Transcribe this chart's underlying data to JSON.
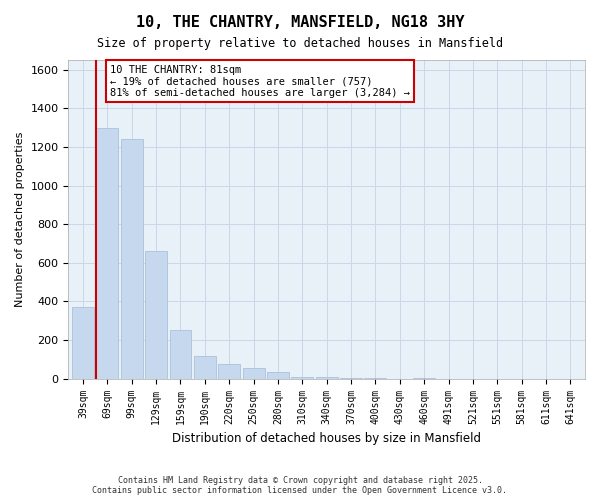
{
  "title": "10, THE CHANTRY, MANSFIELD, NG18 3HY",
  "subtitle": "Size of property relative to detached houses in Mansfield",
  "xlabel": "Distribution of detached houses by size in Mansfield",
  "ylabel": "Number of detached properties",
  "bar_categories": [
    "39sqm",
    "69sqm",
    "99sqm",
    "129sqm",
    "159sqm",
    "190sqm",
    "220sqm",
    "250sqm",
    "280sqm",
    "310sqm",
    "340sqm",
    "370sqm",
    "400sqm",
    "430sqm",
    "460sqm",
    "491sqm",
    "521sqm",
    "551sqm",
    "581sqm",
    "611sqm",
    "641sqm"
  ],
  "bar_values": [
    370,
    1300,
    1240,
    660,
    250,
    120,
    75,
    55,
    35,
    10,
    10,
    3,
    3,
    0,
    2,
    0,
    0,
    0,
    0,
    0,
    0
  ],
  "bar_color": "#c5d8ed",
  "bar_edge_color": "#a0bcd8",
  "property_line_x": 1,
  "property_sqm": 81,
  "property_label": "10 THE CHANTRY: 81sqm",
  "annotation_line1": "← 19% of detached houses are smaller (757)",
  "annotation_line2": "81% of semi-detached houses are larger (3,284) →",
  "annotation_box_color": "#ffffff",
  "annotation_box_edge": "#cc0000",
  "vline_color": "#cc0000",
  "ylim": [
    0,
    1650
  ],
  "yticks": [
    0,
    200,
    400,
    600,
    800,
    1000,
    1200,
    1400,
    1600
  ],
  "grid_color": "#c8d8e8",
  "background_color": "#e8f0f8",
  "plot_bg_color": "#e8f0f8",
  "footer_line1": "Contains HM Land Registry data © Crown copyright and database right 2025.",
  "footer_line2": "Contains public sector information licensed under the Open Government Licence v3.0."
}
